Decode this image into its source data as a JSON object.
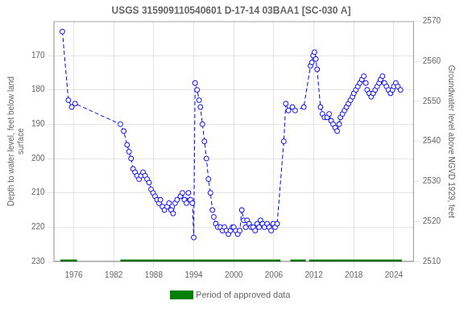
{
  "chart_data": {
    "type": "line",
    "title": "USGS 315909110540601 D-17-14 03BAA1 [SC-030 A]",
    "ylabel": "Depth to water level, feet below land\nsurface",
    "y2label": "Groundwater level above NGVD 1929, feet",
    "x": [
      1974.3,
      1975.2,
      1975.7,
      1976.2,
      1983.0,
      1983.5,
      1984.0,
      1984.3,
      1984.6,
      1984.9,
      1985.2,
      1985.5,
      1985.8,
      1986.1,
      1986.4,
      1986.7,
      1987.0,
      1987.3,
      1987.6,
      1987.9,
      1988.2,
      1988.5,
      1988.8,
      1989.0,
      1989.3,
      1989.6,
      1990.0,
      1990.3,
      1990.6,
      1990.9,
      1991.2,
      1991.5,
      1992.0,
      1992.3,
      1992.6,
      1992.9,
      1993.2,
      1993.5,
      1993.8,
      1994.0,
      1994.2,
      1994.5,
      1994.8,
      1995.0,
      1995.3,
      1995.6,
      1995.9,
      1996.2,
      1996.5,
      1996.8,
      1997.0,
      1997.3,
      1997.6,
      1998.0,
      1998.3,
      1998.6,
      1998.9,
      1999.2,
      1999.5,
      1999.8,
      2000.0,
      2000.3,
      2000.6,
      2000.9,
      2001.2,
      2001.5,
      2001.8,
      2002.0,
      2002.3,
      2002.6,
      2002.9,
      2003.2,
      2003.5,
      2003.8,
      2004.0,
      2004.3,
      2004.6,
      2005.0,
      2005.3,
      2005.6,
      2005.9,
      2006.2,
      2006.5,
      2007.5,
      2007.8,
      2008.2,
      2008.8,
      2009.2,
      2010.5,
      2011.5,
      2011.7,
      2011.9,
      2012.1,
      2012.3,
      2012.5,
      2013.0,
      2013.3,
      2013.6,
      2014.0,
      2014.3,
      2014.6,
      2014.9,
      2015.2,
      2015.5,
      2015.8,
      2016.0,
      2016.3,
      2016.6,
      2016.9,
      2017.2,
      2017.5,
      2017.8,
      2018.0,
      2018.3,
      2018.6,
      2018.9,
      2019.2,
      2019.5,
      2019.8,
      2020.0,
      2020.3,
      2020.6,
      2020.9,
      2021.2,
      2021.5,
      2021.8,
      2022.0,
      2022.3,
      2022.6,
      2022.9,
      2023.2,
      2023.5,
      2023.8,
      2024.0,
      2024.3,
      2024.6,
      2025.0
    ],
    "series": [
      {
        "color": "#0000ff",
        "line_style": "dashed",
        "marker": "circle",
        "values": [
          163,
          183,
          185,
          184,
          190,
          192,
          196,
          198,
          200,
          203,
          204,
          205,
          206,
          205,
          204,
          205,
          206,
          207,
          209,
          210,
          211,
          212,
          213,
          212,
          214,
          215,
          214,
          213,
          215,
          216,
          213,
          212,
          211,
          210,
          212,
          213,
          210,
          212,
          213,
          223,
          178,
          180,
          183,
          185,
          190,
          195,
          200,
          206,
          210,
          215,
          217,
          219,
          220,
          220,
          221,
          220,
          221,
          222,
          221,
          220,
          220,
          221,
          222,
          221,
          215,
          218,
          220,
          218,
          219,
          220,
          220,
          221,
          219,
          220,
          218,
          219,
          220,
          219,
          220,
          221,
          219,
          220,
          219,
          195,
          184,
          186,
          185,
          186,
          185,
          173,
          172,
          170,
          169,
          171,
          174,
          185,
          187,
          188,
          188,
          187,
          189,
          190,
          191,
          192,
          190,
          188,
          187,
          186,
          185,
          184,
          183,
          182,
          181,
          180,
          179,
          178,
          177,
          176,
          178,
          180,
          181,
          182,
          181,
          180,
          179,
          178,
          177,
          176,
          178,
          179,
          180,
          181,
          180,
          179,
          178,
          179,
          180
        ]
      },
      {
        "name": "Period of approved data",
        "color": "#008000",
        "type": "segments",
        "y": 230,
        "segments": [
          [
            1974.0,
            1976.5
          ],
          [
            1983.0,
            2007.0
          ],
          [
            2008.5,
            2010.8
          ],
          [
            2011.3,
            2025.2
          ]
        ]
      }
    ],
    "xlim": [
      1973,
      2027
    ],
    "xticks": [
      1976,
      1982,
      1988,
      1994,
      2000,
      2006,
      2012,
      2018,
      2024
    ],
    "ylim": [
      230,
      160
    ],
    "yticks": [
      170,
      180,
      190,
      200,
      210,
      220,
      230
    ],
    "y2lim": [
      2510,
      2570
    ],
    "y2ticks": [
      2510,
      2520,
      2530,
      2540,
      2550,
      2560,
      2570
    ],
    "grid": true,
    "legend": "bottom"
  }
}
